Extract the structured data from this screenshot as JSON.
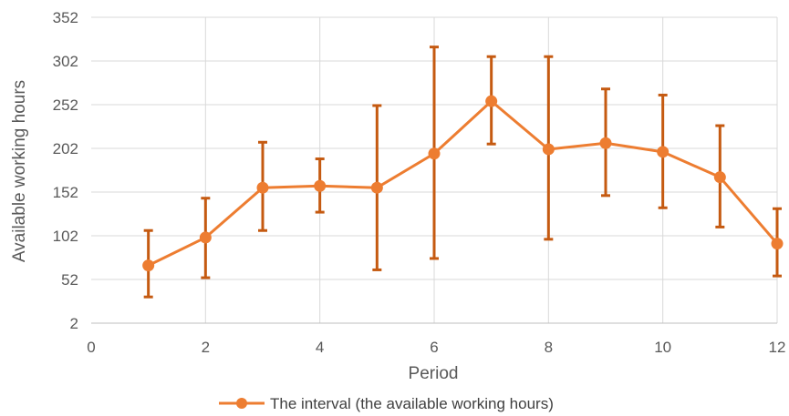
{
  "chart_data": {
    "type": "line",
    "xlabel": "Period",
    "ylabel": "Available working hours",
    "xlim": [
      0,
      12
    ],
    "ylim": [
      2,
      352
    ],
    "xticks": [
      0,
      2,
      4,
      6,
      8,
      10,
      12
    ],
    "yticks": [
      2,
      52,
      102,
      152,
      202,
      252,
      302,
      352
    ],
    "grid": true,
    "legend": "bottom",
    "series": [
      {
        "name": "The interval (the available working hours)",
        "color": "#ED7D31",
        "errorbar_color": "#C55A11",
        "x": [
          1,
          2,
          3,
          4,
          5,
          6,
          7,
          8,
          9,
          10,
          11,
          12
        ],
        "y": [
          68,
          100,
          157,
          159,
          157,
          196,
          256,
          201,
          208,
          198,
          169,
          93
        ],
        "lower": [
          32,
          54,
          108,
          129,
          63,
          76,
          207,
          98,
          148,
          134,
          112,
          56
        ],
        "upper": [
          108,
          145,
          209,
          190,
          251,
          318,
          307,
          307,
          270,
          263,
          228,
          133
        ]
      }
    ]
  }
}
